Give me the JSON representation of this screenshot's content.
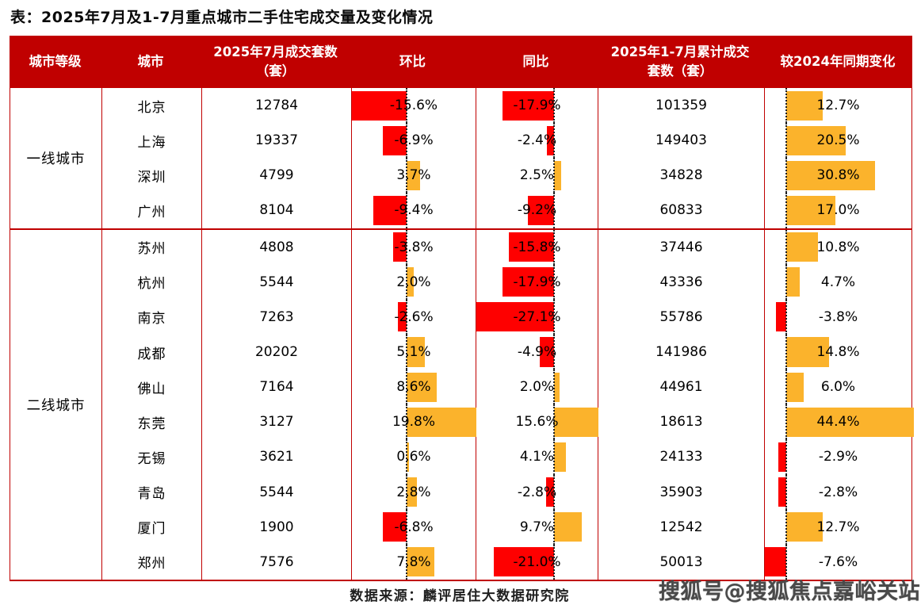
{
  "chart_data": {
    "type": "table",
    "title": "表：2025年7月及1-7月重点城市二手住宅成交量及变化情况",
    "columns": [
      "城市等级",
      "城市",
      "2025年7月成交套数（套）",
      "环比",
      "同比",
      "2025年1-7月累计成交套数（套）",
      "较2024年同期变化"
    ],
    "bar_column_keys": [
      "mom",
      "yoy",
      "ytd"
    ],
    "groups": [
      {
        "tier": "一线城市",
        "rows": [
          {
            "city": "北京",
            "jul": "12784",
            "mom": "-15.6%",
            "yoy": "-17.9%",
            "cum": "101359",
            "ytd": "12.7%"
          },
          {
            "city": "上海",
            "jul": "19337",
            "mom": "-6.9%",
            "yoy": "-2.4%",
            "cum": "149403",
            "ytd": "20.5%"
          },
          {
            "city": "深圳",
            "jul": "4799",
            "mom": "3.7%",
            "yoy": "2.5%",
            "cum": "34828",
            "ytd": "30.8%"
          },
          {
            "city": "广州",
            "jul": "8104",
            "mom": "-9.4%",
            "yoy": "-9.2%",
            "cum": "60833",
            "ytd": "17.0%"
          }
        ]
      },
      {
        "tier": "二线城市",
        "rows": [
          {
            "city": "苏州",
            "jul": "4808",
            "mom": "-3.8%",
            "yoy": "-15.8%",
            "cum": "37446",
            "ytd": "10.8%"
          },
          {
            "city": "杭州",
            "jul": "5544",
            "mom": "2.0%",
            "yoy": "-17.9%",
            "cum": "43336",
            "ytd": "4.7%"
          },
          {
            "city": "南京",
            "jul": "7263",
            "mom": "-2.6%",
            "yoy": "-27.1%",
            "cum": "55786",
            "ytd": "-3.8%"
          },
          {
            "city": "成都",
            "jul": "20202",
            "mom": "5.1%",
            "yoy": "-4.9%",
            "cum": "141986",
            "ytd": "14.8%"
          },
          {
            "city": "佛山",
            "jul": "7164",
            "mom": "8.6%",
            "yoy": "2.0%",
            "cum": "44961",
            "ytd": "6.0%"
          },
          {
            "city": "东莞",
            "jul": "3127",
            "mom": "19.8%",
            "yoy": "15.6%",
            "cum": "18613",
            "ytd": "44.4%"
          },
          {
            "city": "无锡",
            "jul": "3621",
            "mom": "0.6%",
            "yoy": "4.1%",
            "cum": "24133",
            "ytd": "-2.9%"
          },
          {
            "city": "青岛",
            "jul": "5544",
            "mom": "2.8%",
            "yoy": "-2.8%",
            "cum": "35903",
            "ytd": "-2.8%"
          },
          {
            "city": "厦门",
            "jul": "1900",
            "mom": "-6.8%",
            "yoy": "9.7%",
            "cum": "12542",
            "ytd": "12.7%"
          },
          {
            "city": "郑州",
            "jul": "7576",
            "mom": "7.8%",
            "yoy": "-21.0%",
            "cum": "50013",
            "ytd": "-7.6%"
          }
        ]
      }
    ],
    "legend_note": "red bars = negative change, orange bars = positive change, dotted line = zero axis"
  },
  "footer": {
    "source": "数据来源：麟评居住大数据研究院",
    "watermark": "搜狐号@搜狐焦点嘉峪关站"
  },
  "colors": {
    "header_bg": "#C00000",
    "border": "#C00000",
    "bar_negative": "#FE0000",
    "bar_positive": "#FBB32C"
  }
}
